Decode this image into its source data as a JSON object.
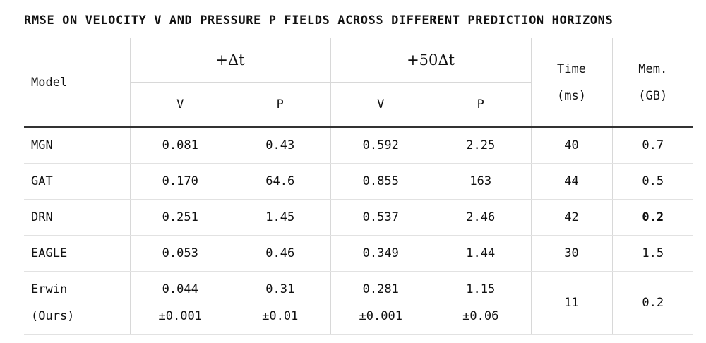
{
  "title": "RMSE ON VELOCITY V AND PRESSURE P FIELDS ACROSS DIFFERENT PREDICTION HORIZONS",
  "header": {
    "model": "Model",
    "group1": "+Δt",
    "group2": "+50Δt",
    "time_line1": "Time",
    "time_line2": "(ms)",
    "mem_line1": "Mem.",
    "mem_line2": "(GB)",
    "v": "V",
    "p": "P"
  },
  "rows": [
    {
      "model": "MGN",
      "v1": "0.081",
      "p1": "0.43",
      "v50": "0.592",
      "p50": "2.25",
      "time": "40",
      "mem": "0.7"
    },
    {
      "model": "GAT",
      "v1": "0.170",
      "p1": "64.6",
      "v50": "0.855",
      "p50": "163",
      "time": "44",
      "mem": "0.5"
    },
    {
      "model": "DRN",
      "v1": "0.251",
      "p1": "1.45",
      "v50": "0.537",
      "p50": "2.46",
      "time": "42",
      "mem": "0.2"
    },
    {
      "model": "EAGLE",
      "v1": "0.053",
      "p1": "0.46",
      "v50": "0.349",
      "p50": "1.44",
      "time": "30",
      "mem": "1.5"
    }
  ],
  "erwin": {
    "model_line1": "Erwin",
    "model_line2": "(Ours)",
    "v1": "0.044",
    "v1_err": "±0.001",
    "p1": "0.31",
    "p1_err": "±0.01",
    "v50": "0.281",
    "v50_err": "±0.001",
    "p50": "1.15",
    "p50_err": "±0.06",
    "time": "11",
    "mem": "0.2"
  }
}
